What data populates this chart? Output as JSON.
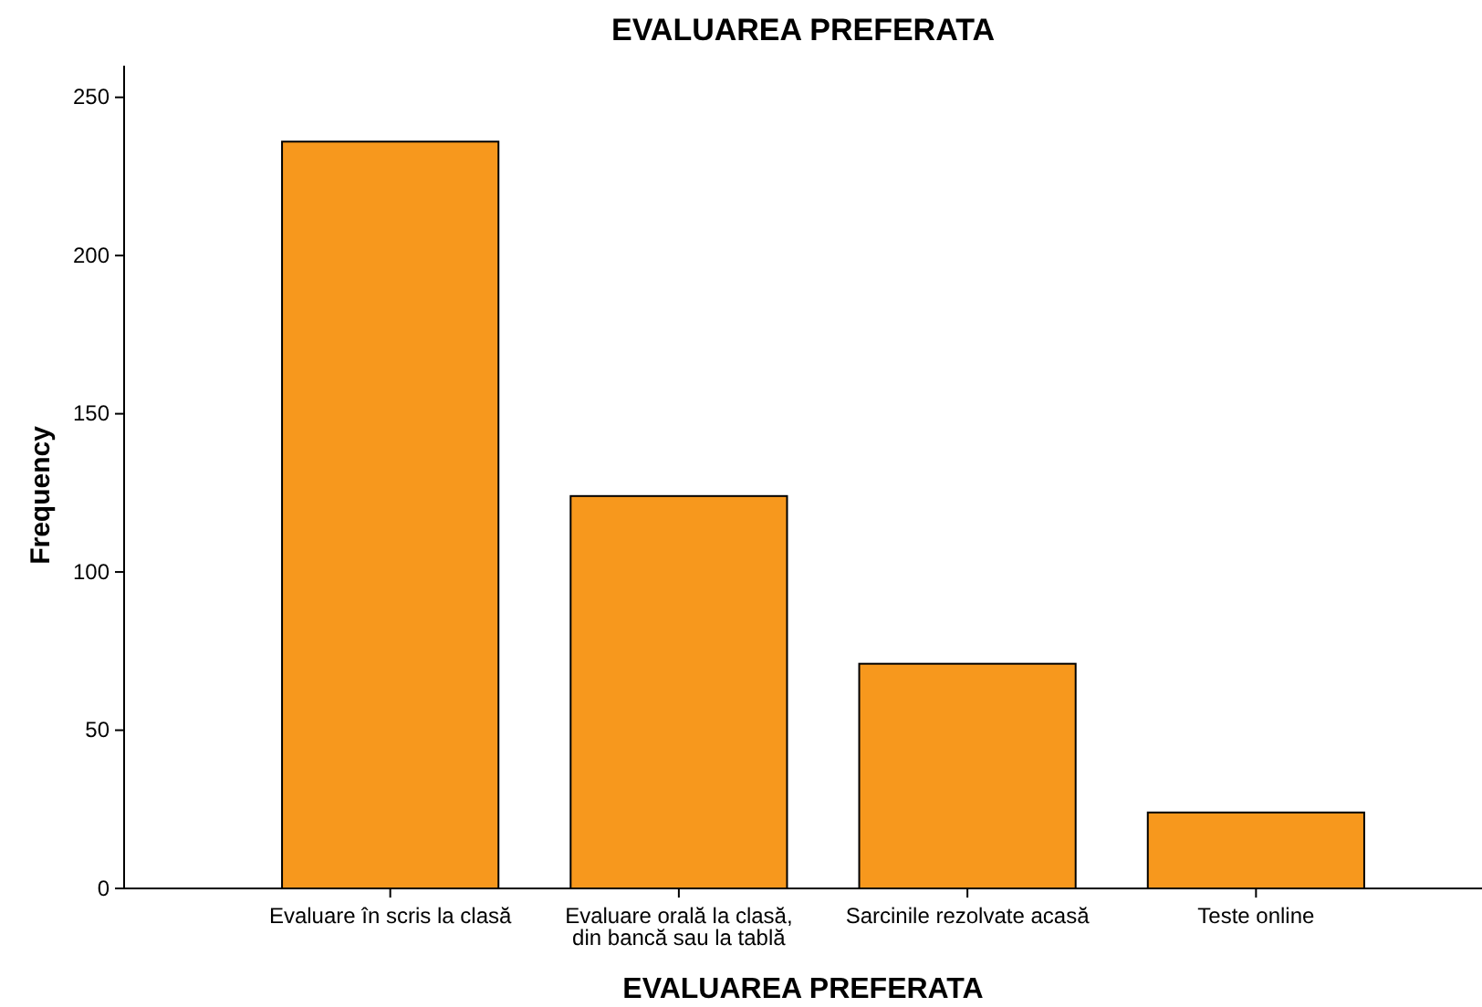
{
  "chart_data": {
    "type": "bar",
    "title": "EVALUAREA PREFERATA",
    "xlabel": "EVALUAREA PREFERATA",
    "ylabel": "Frequency",
    "categories": [
      "Evaluare în scris la clasă",
      "Evaluare orală la clasă,\ndin bancă sau la tablă",
      "Sarcinile rezolvate acasă",
      "Teste online"
    ],
    "values": [
      236,
      124,
      71,
      24
    ],
    "color": "#f7981d",
    "ylim": [
      0,
      260
    ],
    "yticks": [
      0,
      50,
      100,
      150,
      200,
      250
    ],
    "grid": false
  }
}
